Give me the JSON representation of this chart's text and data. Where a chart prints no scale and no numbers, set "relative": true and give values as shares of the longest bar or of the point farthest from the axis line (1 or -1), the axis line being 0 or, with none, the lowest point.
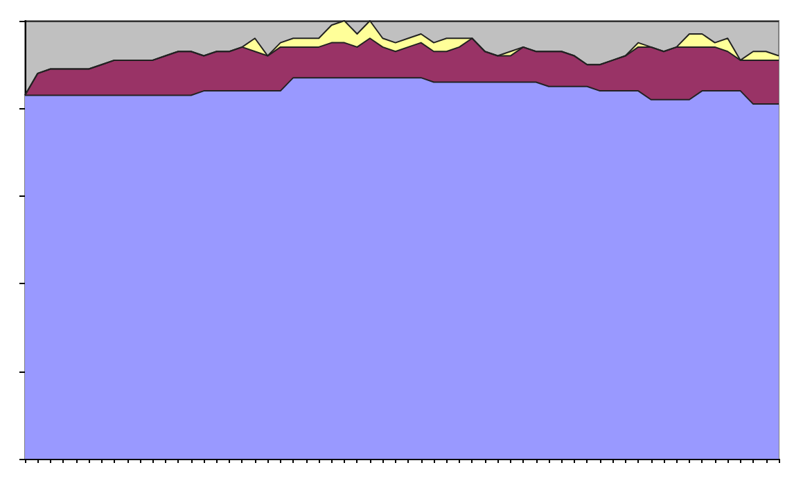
{
  "chart_data": {
    "type": "area",
    "stacked": true,
    "relative": true,
    "grid": "y",
    "categories": [
      null,
      null,
      null,
      null,
      null,
      null,
      null,
      null,
      null,
      null,
      null,
      null,
      null,
      null,
      null,
      null,
      null,
      null,
      null,
      null,
      null,
      null,
      null,
      null,
      null,
      null,
      null,
      null,
      null,
      null,
      null,
      null,
      null,
      null,
      null,
      null,
      null,
      null,
      null,
      null,
      null,
      null,
      null,
      null,
      null,
      null,
      null,
      null,
      null,
      null,
      null,
      null,
      null,
      null,
      null,
      null,
      null,
      null,
      null,
      null
    ],
    "series": [
      {
        "color": "#9999ff",
        "values": [
          0.83,
          0.83,
          0.83,
          0.83,
          0.83,
          0.83,
          0.83,
          0.83,
          0.83,
          0.83,
          0.83,
          0.83,
          0.83,
          0.83,
          0.84,
          0.84,
          0.84,
          0.84,
          0.84,
          0.84,
          0.84,
          0.87,
          0.87,
          0.87,
          0.87,
          0.87,
          0.87,
          0.87,
          0.87,
          0.87,
          0.87,
          0.87,
          0.86,
          0.86,
          0.86,
          0.86,
          0.86,
          0.86,
          0.86,
          0.86,
          0.86,
          0.85,
          0.85,
          0.85,
          0.85,
          0.84,
          0.84,
          0.84,
          0.84,
          0.82,
          0.82,
          0.82,
          0.82,
          0.84,
          0.84,
          0.84,
          0.84,
          0.81,
          0.81,
          0.81
        ]
      },
      {
        "color": "#993366",
        "values": [
          0,
          0.05,
          0.06,
          0.06,
          0.06,
          0.06,
          0.07,
          0.08,
          0.08,
          0.08,
          0.08,
          0.09,
          0.1,
          0.1,
          0.08,
          0.09,
          0.09,
          0.1,
          0.09,
          0.08,
          0.1,
          0.07,
          0.07,
          0.07,
          0.08,
          0.08,
          0.07,
          0.09,
          0.07,
          0.06,
          0.07,
          0.08,
          0.07,
          0.07,
          0.08,
          0.1,
          0.07,
          0.06,
          0.06,
          0.08,
          0.07,
          0.08,
          0.08,
          0.07,
          0.05,
          0.06,
          0.07,
          0.08,
          0.1,
          0.12,
          0.11,
          0.12,
          0.12,
          0.1,
          0.1,
          0.09,
          0.07,
          0.1,
          0.1,
          0.1
        ]
      },
      {
        "color": "#ffff99",
        "values": [
          0,
          0,
          0,
          0,
          0,
          0,
          0,
          0,
          0,
          0,
          0,
          0,
          0,
          0,
          0,
          0,
          0,
          0,
          0.03,
          0,
          0.01,
          0.02,
          0.02,
          0.02,
          0.04,
          0.05,
          0.03,
          0.04,
          0.02,
          0.02,
          0.02,
          0.02,
          0.02,
          0.03,
          0.02,
          0,
          0,
          0,
          0.01,
          0,
          0,
          0,
          0,
          0,
          0,
          0,
          0,
          0,
          0.01,
          0,
          0,
          0,
          0.03,
          0.03,
          0.01,
          0.03,
          0,
          0.02,
          0.02,
          0.01
        ]
      }
    ]
  }
}
